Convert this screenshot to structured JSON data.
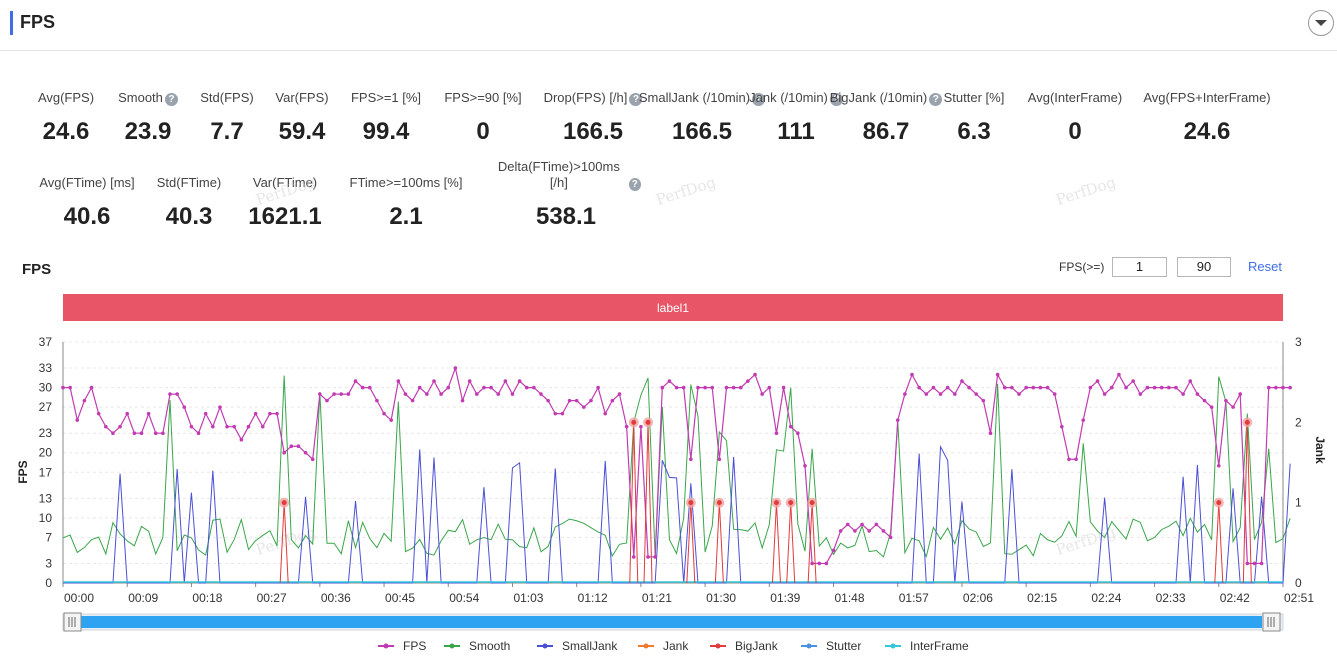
{
  "header": {
    "title": "FPS"
  },
  "stats_row1": [
    {
      "label": "Avg(FPS)",
      "value": "24.6",
      "help": false
    },
    {
      "label": "Smooth",
      "value": "23.9",
      "help": true
    },
    {
      "label": "Std(FPS)",
      "value": "7.7",
      "help": false
    },
    {
      "label": "Var(FPS)",
      "value": "59.4",
      "help": false
    },
    {
      "label": "FPS>=1 [%]",
      "value": "99.4",
      "help": false
    },
    {
      "label": "FPS>=90 [%]",
      "value": "0",
      "help": false
    },
    {
      "label": "Drop(FPS) [/h]",
      "value": "166.5",
      "help": true
    },
    {
      "label": "SmallJank (/10min)",
      "value": "166.5",
      "help": true
    },
    {
      "label": "Jank (/10min)",
      "value": "111",
      "help": true
    },
    {
      "label": "BigJank (/10min)",
      "value": "86.7",
      "help": true
    },
    {
      "label": "Stutter [%]",
      "value": "6.3",
      "help": false
    },
    {
      "label": "Avg(InterFrame)",
      "value": "0",
      "help": false
    },
    {
      "label": "Avg(FPS+InterFrame)",
      "value": "24.6",
      "help": false
    }
  ],
  "stats_row2": [
    {
      "label": "Avg(FTime) [ms]",
      "value": "40.6",
      "help": false
    },
    {
      "label": "Std(FTime)",
      "value": "40.3",
      "help": false
    },
    {
      "label": "Var(FTime)",
      "value": "1621.1",
      "help": false
    },
    {
      "label": "FTime>=100ms [%]",
      "value": "2.1",
      "help": false
    },
    {
      "label": "Delta(FTime)>100ms [/h]",
      "value": "538.1",
      "help": true
    }
  ],
  "watermark": "PerfDog",
  "chart_title": "FPS",
  "controls": {
    "range_label": "FPS(>=)",
    "min": "1",
    "max": "90",
    "reset": "Reset"
  },
  "colors": {
    "fps": "#c23bb2",
    "smooth": "#3aa64a",
    "smalljank": "#4b4fd6",
    "jank": "#f07b2f",
    "bigjank": "#e03c3c",
    "stutter": "#4a90e2",
    "interframe": "#34c6d9",
    "label_band": "#e85566",
    "slider": "#2ea3f2"
  },
  "chart_data": {
    "type": "line",
    "label_band": "label1",
    "x_ticks": [
      "00:00",
      "00:09",
      "00:18",
      "00:27",
      "00:36",
      "00:45",
      "00:54",
      "01:03",
      "01:12",
      "01:21",
      "01:30",
      "01:39",
      "01:48",
      "01:57",
      "02:06",
      "02:15",
      "02:24",
      "02:33",
      "02:42",
      "02:51"
    ],
    "y_left": {
      "label": "FPS",
      "ticks": [
        0,
        3,
        7,
        10,
        13,
        17,
        20,
        23,
        27,
        30,
        33,
        37
      ],
      "range": [
        0,
        37
      ]
    },
    "y_right": {
      "label": "Jank",
      "ticks": [
        0,
        1,
        2,
        3
      ],
      "range": [
        0,
        3
      ]
    },
    "legend": [
      "FPS",
      "Smooth",
      "SmallJank",
      "Jank",
      "BigJank",
      "Stutter",
      "InterFrame"
    ],
    "x_seconds_max": 171,
    "fps": [
      30,
      30,
      25,
      28,
      30,
      26,
      24,
      23,
      24,
      26,
      23,
      23,
      26,
      23,
      23,
      29,
      29,
      27,
      24,
      23,
      26,
      24,
      27,
      24,
      24,
      22,
      24,
      26,
      24,
      26,
      26,
      20,
      21,
      21,
      20,
      19,
      29,
      28,
      29,
      29,
      29,
      31,
      30,
      30,
      28,
      26,
      25,
      31,
      29,
      28,
      30,
      29,
      31,
      29,
      30,
      33,
      28,
      31,
      29,
      30,
      30,
      29,
      31,
      29,
      31,
      30,
      30,
      29,
      28,
      26,
      26,
      28,
      28,
      27,
      28,
      30,
      26,
      28,
      29,
      24,
      4,
      24,
      4,
      4,
      30,
      31,
      30,
      30,
      19,
      30,
      30,
      30,
      19,
      30,
      30,
      30,
      31,
      32,
      29,
      30,
      23,
      30,
      24,
      23,
      18,
      3,
      3,
      3,
      5,
      8,
      9,
      8,
      9,
      8,
      9,
      8,
      7,
      25,
      29,
      32,
      30,
      29,
      30,
      29,
      30,
      29,
      31,
      30,
      29,
      28,
      23,
      32,
      30,
      30,
      29,
      30,
      30,
      30,
      30,
      29,
      24,
      19,
      19,
      25,
      30,
      31,
      29,
      30,
      32,
      30,
      31,
      29,
      30,
      30,
      30,
      30,
      30,
      29,
      31,
      29,
      28,
      27,
      18,
      28,
      27,
      29,
      3,
      3,
      3,
      30,
      30,
      30,
      30
    ]
  }
}
